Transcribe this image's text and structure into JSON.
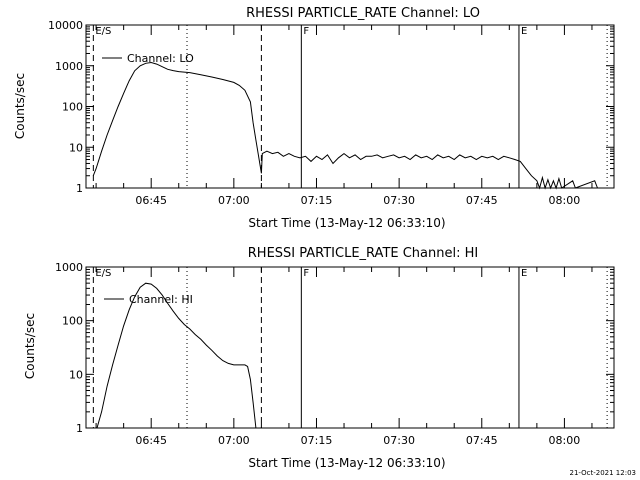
{
  "footer_timestamp": "21-Oct-2021 12:03",
  "chart_data": [
    {
      "type": "line",
      "title": "RHESSI PARTICLE_RATE Channel: LO",
      "xlabel": "Start Time (13-May-12 06:33:10)",
      "ylabel": "Counts/sec",
      "xscale": "time",
      "xlim": [
        "06:33:10",
        "08:09:00"
      ],
      "yscale": "log",
      "ylim": [
        1,
        10000
      ],
      "yticks": [
        1,
        10,
        100,
        1000,
        10000
      ],
      "ytick_labels": [
        "1",
        "10",
        "100",
        "1000",
        "10000"
      ],
      "xticks": [
        "06:45",
        "07:00",
        "07:15",
        "07:30",
        "07:45",
        "08:00"
      ],
      "legend": {
        "position": "top-left",
        "entries": [
          "Channel: LO"
        ]
      },
      "grid": false,
      "markers": [
        {
          "label": "E/S",
          "time": "06:34:30",
          "style": "dashed"
        },
        {
          "label": "",
          "time": "06:51:30",
          "style": "dotted"
        },
        {
          "label": "",
          "time": "07:05:00",
          "style": "dashed"
        },
        {
          "label": "F",
          "time": "07:12:15",
          "style": "solid"
        },
        {
          "label": "E",
          "time": "07:51:45",
          "style": "solid"
        },
        {
          "label": "",
          "time": "08:07:45",
          "style": "dotted"
        }
      ],
      "series": [
        {
          "name": "Channel: LO",
          "points": [
            [
              "06:34:30",
              2
            ],
            [
              "06:35:00",
              3
            ],
            [
              "06:36:00",
              8
            ],
            [
              "06:37:00",
              20
            ],
            [
              "06:38:00",
              45
            ],
            [
              "06:39:00",
              100
            ],
            [
              "06:40:00",
              210
            ],
            [
              "06:41:00",
              430
            ],
            [
              "06:42:00",
              750
            ],
            [
              "06:43:00",
              1000
            ],
            [
              "06:44:00",
              1150
            ],
            [
              "06:45:00",
              1200
            ],
            [
              "06:46:00",
              1100
            ],
            [
              "06:47:00",
              950
            ],
            [
              "06:48:00",
              820
            ],
            [
              "06:49:00",
              760
            ],
            [
              "06:50:00",
              720
            ],
            [
              "06:52:00",
              680
            ],
            [
              "06:54:00",
              600
            ],
            [
              "06:56:00",
              530
            ],
            [
              "06:58:00",
              460
            ],
            [
              "07:00:00",
              390
            ],
            [
              "07:01:00",
              330
            ],
            [
              "07:02:00",
              250
            ],
            [
              "07:03:00",
              130
            ],
            [
              "07:03:30",
              40
            ],
            [
              "07:04:00",
              15
            ],
            [
              "07:04:30",
              6
            ],
            [
              "07:05:00",
              2.3
            ],
            [
              "07:05:10",
              7
            ],
            [
              "07:06:00",
              8
            ],
            [
              "07:07:00",
              7
            ],
            [
              "07:08:00",
              7.5
            ],
            [
              "07:09:00",
              6
            ],
            [
              "07:10:00",
              7
            ],
            [
              "07:11:00",
              6
            ],
            [
              "07:12:00",
              5.5
            ],
            [
              "07:13:00",
              6
            ],
            [
              "07:14:00",
              4.5
            ],
            [
              "07:15:00",
              6
            ],
            [
              "07:16:00",
              5
            ],
            [
              "07:17:00",
              6.5
            ],
            [
              "07:18:00",
              4
            ],
            [
              "07:19:00",
              5.5
            ],
            [
              "07:20:00",
              7
            ],
            [
              "07:21:00",
              5.5
            ],
            [
              "07:22:00",
              6.5
            ],
            [
              "07:23:00",
              5
            ],
            [
              "07:24:00",
              6
            ],
            [
              "07:25:00",
              6
            ],
            [
              "07:26:00",
              6.5
            ],
            [
              "07:27:00",
              5.5
            ],
            [
              "07:28:00",
              6
            ],
            [
              "07:29:00",
              6.5
            ],
            [
              "07:30:00",
              5.5
            ],
            [
              "07:31:00",
              6
            ],
            [
              "07:32:00",
              5
            ],
            [
              "07:33:00",
              6.5
            ],
            [
              "07:34:00",
              5.5
            ],
            [
              "07:35:00",
              6
            ],
            [
              "07:36:00",
              5
            ],
            [
              "07:37:00",
              6.5
            ],
            [
              "07:38:00",
              5.5
            ],
            [
              "07:39:00",
              6
            ],
            [
              "07:40:00",
              5
            ],
            [
              "07:41:00",
              6.5
            ],
            [
              "07:42:00",
              5.5
            ],
            [
              "07:43:00",
              6
            ],
            [
              "07:44:00",
              5
            ],
            [
              "07:45:00",
              6
            ],
            [
              "07:46:00",
              5.5
            ],
            [
              "07:47:00",
              6
            ],
            [
              "07:48:00",
              5
            ],
            [
              "07:49:00",
              6
            ],
            [
              "07:50:00",
              5.5
            ],
            [
              "07:51:00",
              5
            ],
            [
              "07:52:00",
              4.5
            ],
            [
              "07:53:00",
              3
            ],
            [
              "07:54:00",
              2
            ],
            [
              "07:55:00",
              1.5
            ],
            [
              "07:55:30",
              1
            ],
            [
              "07:56:00",
              1.8
            ],
            [
              "07:56:30",
              1
            ],
            [
              "07:57:00",
              1.6
            ],
            [
              "07:57:30",
              1
            ],
            [
              "07:58:00",
              1.5
            ],
            [
              "07:58:30",
              1
            ],
            [
              "07:59:00",
              1.7
            ],
            [
              "07:59:30",
              1
            ],
            [
              "08:01:30",
              1.5
            ],
            [
              "08:02:00",
              1
            ],
            [
              "08:05:30",
              1.5
            ],
            [
              "08:06:00",
              1
            ]
          ]
        }
      ]
    },
    {
      "type": "line",
      "title": "RHESSI PARTICLE_RATE Channel: HI",
      "xlabel": "Start Time (13-May-12 06:33:10)",
      "ylabel": "Counts/sec",
      "xscale": "time",
      "xlim": [
        "06:33:10",
        "08:09:00"
      ],
      "yscale": "log",
      "ylim": [
        1,
        1000
      ],
      "yticks": [
        1,
        10,
        100,
        1000
      ],
      "ytick_labels": [
        "1",
        "10",
        "100",
        "1000"
      ],
      "xticks": [
        "06:45",
        "07:00",
        "07:15",
        "07:30",
        "07:45",
        "08:00"
      ],
      "legend": {
        "position": "top-left",
        "entries": [
          "Channel: HI"
        ]
      },
      "grid": false,
      "markers": [
        {
          "label": "E/S",
          "time": "06:34:30",
          "style": "dashed"
        },
        {
          "label": "",
          "time": "06:51:30",
          "style": "dotted"
        },
        {
          "label": "",
          "time": "07:05:00",
          "style": "dashed"
        },
        {
          "label": "F",
          "time": "07:12:15",
          "style": "solid"
        },
        {
          "label": "E",
          "time": "07:51:45",
          "style": "solid"
        },
        {
          "label": "",
          "time": "08:07:45",
          "style": "dotted"
        }
      ],
      "series": [
        {
          "name": "Channel: HI",
          "points": [
            [
              "06:35:10",
              1
            ],
            [
              "06:36:00",
              2
            ],
            [
              "06:37:00",
              6
            ],
            [
              "06:38:00",
              15
            ],
            [
              "06:39:00",
              35
            ],
            [
              "06:40:00",
              80
            ],
            [
              "06:41:00",
              160
            ],
            [
              "06:42:00",
              280
            ],
            [
              "06:43:00",
              420
            ],
            [
              "06:44:00",
              500
            ],
            [
              "06:45:00",
              480
            ],
            [
              "06:46:00",
              400
            ],
            [
              "06:47:00",
              300
            ],
            [
              "06:48:00",
              210
            ],
            [
              "06:49:00",
              150
            ],
            [
              "06:50:00",
              110
            ],
            [
              "06:51:00",
              85
            ],
            [
              "06:52:00",
              70
            ],
            [
              "06:53:00",
              55
            ],
            [
              "06:54:00",
              45
            ],
            [
              "06:55:00",
              35
            ],
            [
              "06:56:00",
              28
            ],
            [
              "06:57:00",
              22
            ],
            [
              "06:58:00",
              18
            ],
            [
              "06:59:00",
              16
            ],
            [
              "07:00:00",
              15
            ],
            [
              "07:01:00",
              15
            ],
            [
              "07:02:00",
              15
            ],
            [
              "07:02:30",
              14
            ],
            [
              "07:03:00",
              8
            ],
            [
              "07:03:30",
              3
            ],
            [
              "07:04:00",
              1
            ]
          ]
        }
      ]
    }
  ]
}
